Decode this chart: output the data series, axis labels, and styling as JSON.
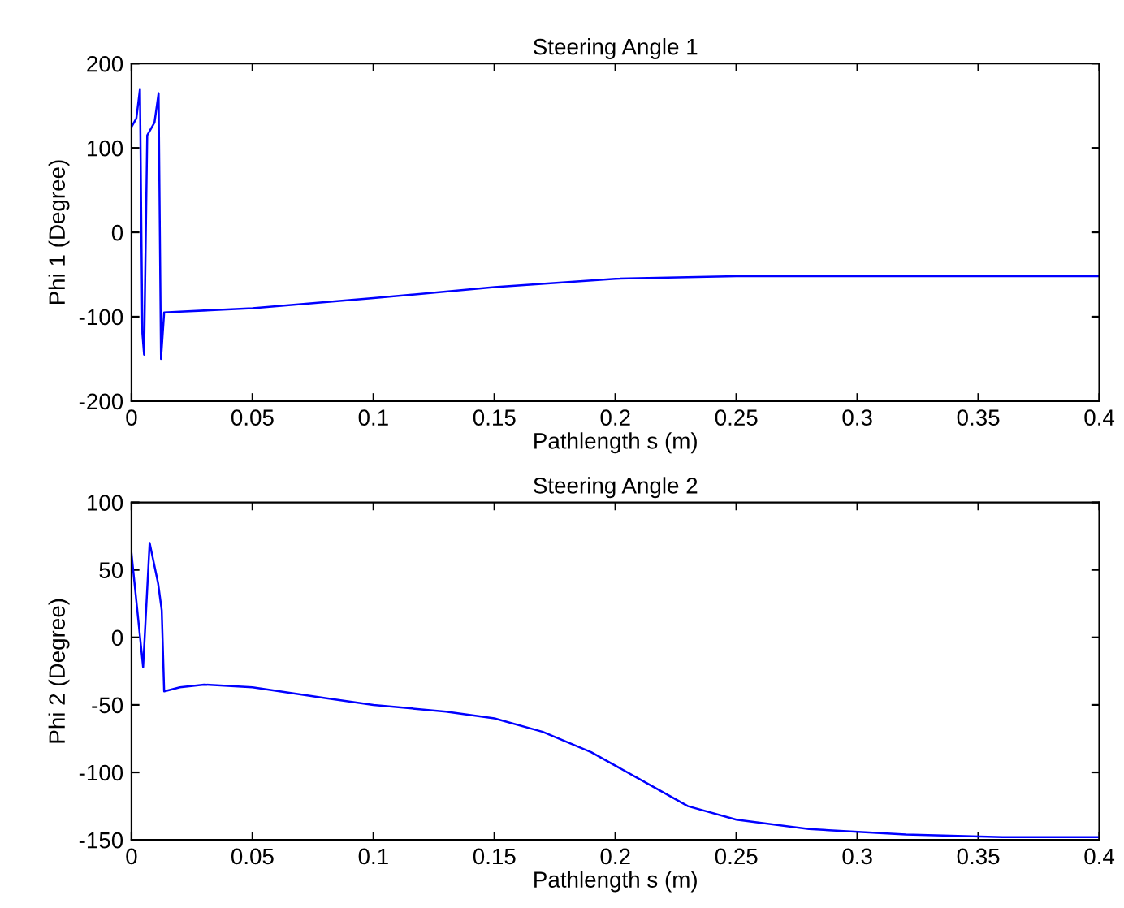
{
  "chart_data": [
    {
      "type": "line",
      "title": "Steering Angle 1",
      "xlabel": "Pathlength s (m)",
      "ylabel": "Phi 1 (Degree)",
      "xlim": [
        0,
        0.4
      ],
      "ylim": [
        -200,
        200
      ],
      "xticks": [
        0,
        0.05,
        0.1,
        0.15,
        0.2,
        0.25,
        0.3,
        0.35,
        0.4
      ],
      "yticks": [
        -200,
        -100,
        0,
        100,
        200
      ],
      "grid": false,
      "legend": false,
      "series": [
        {
          "color": "#0000ff",
          "x": [
            0,
            0.002,
            0.0035,
            0.0045,
            0.0052,
            0.0065,
            0.0095,
            0.0112,
            0.0122,
            0.0135,
            0.02,
            0.05,
            0.1,
            0.15,
            0.2,
            0.25,
            0.3,
            0.4
          ],
          "values": [
            125,
            135,
            170,
            -120,
            -145,
            115,
            130,
            165,
            -150,
            -95,
            -94,
            -90,
            -78,
            -65,
            -55,
            -52,
            -52,
            -52
          ]
        }
      ]
    },
    {
      "type": "line",
      "title": "Steering Angle 2",
      "xlabel": "Pathlength s (m)",
      "ylabel": "Phi 2 (Degree)",
      "xlim": [
        0,
        0.4
      ],
      "ylim": [
        -150,
        100
      ],
      "xticks": [
        0,
        0.05,
        0.1,
        0.15,
        0.2,
        0.25,
        0.3,
        0.35,
        0.4
      ],
      "yticks": [
        -150,
        -100,
        -50,
        0,
        50,
        100
      ],
      "grid": false,
      "legend": false,
      "series": [
        {
          "color": "#0000ff",
          "x": [
            0,
            0.0048,
            0.0075,
            0.011,
            0.0125,
            0.0135,
            0.02,
            0.03,
            0.05,
            0.08,
            0.1,
            0.13,
            0.15,
            0.17,
            0.19,
            0.21,
            0.23,
            0.25,
            0.28,
            0.32,
            0.36,
            0.4
          ],
          "values": [
            62,
            -22,
            70,
            40,
            20,
            -40,
            -37,
            -35,
            -37,
            -45,
            -50,
            -55,
            -60,
            -70,
            -85,
            -105,
            -125,
            -135,
            -142,
            -146,
            -148,
            -148
          ]
        }
      ]
    }
  ]
}
